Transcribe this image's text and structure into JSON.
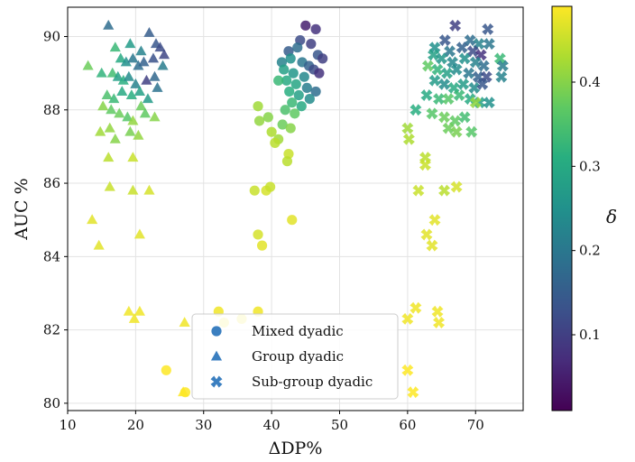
{
  "chart_data": {
    "type": "scatter",
    "xlabel": "ΔDP%",
    "ylabel": "AUC %",
    "xlim": [
      10,
      77
    ],
    "ylim": [
      79.8,
      90.8
    ],
    "x_ticks": [
      10,
      20,
      30,
      40,
      50,
      60,
      70
    ],
    "y_ticks": [
      80,
      82,
      84,
      86,
      88,
      90
    ],
    "grid": true,
    "legend_placement": "lower center",
    "colormap": "viridis",
    "colorbar": {
      "label": "δ",
      "range": [
        0.01,
        0.49
      ],
      "ticks": [
        0.1,
        0.2,
        0.3,
        0.4
      ]
    },
    "series": [
      {
        "name": "Mixed dyadic",
        "marker": "circle",
        "legend_color": "#3b7fc0",
        "points": [
          [
            45.0,
            90.3,
            0.05
          ],
          [
            46.5,
            90.2,
            0.08
          ],
          [
            44.2,
            89.9,
            0.12
          ],
          [
            45.8,
            89.8,
            0.1
          ],
          [
            42.5,
            89.6,
            0.15
          ],
          [
            43.8,
            89.7,
            0.18
          ],
          [
            46.8,
            89.5,
            0.14
          ],
          [
            47.5,
            89.4,
            0.1
          ],
          [
            41.5,
            89.3,
            0.22
          ],
          [
            42.8,
            89.4,
            0.25
          ],
          [
            44.5,
            89.3,
            0.2
          ],
          [
            45.5,
            89.2,
            0.16
          ],
          [
            46.2,
            89.1,
            0.12
          ],
          [
            47.0,
            89.0,
            0.08
          ],
          [
            41.8,
            89.1,
            0.28
          ],
          [
            43.2,
            89.0,
            0.26
          ],
          [
            44.8,
            88.9,
            0.23
          ],
          [
            42.2,
            88.8,
            0.3
          ],
          [
            43.6,
            88.7,
            0.29
          ],
          [
            45.2,
            88.6,
            0.21
          ],
          [
            46.5,
            88.5,
            0.18
          ],
          [
            41.0,
            88.8,
            0.33
          ],
          [
            42.6,
            88.5,
            0.31
          ],
          [
            44.0,
            88.4,
            0.28
          ],
          [
            45.6,
            88.3,
            0.24
          ],
          [
            43.0,
            88.2,
            0.33
          ],
          [
            44.4,
            88.1,
            0.3
          ],
          [
            42.0,
            88.0,
            0.35
          ],
          [
            43.4,
            87.9,
            0.37
          ],
          [
            41.6,
            87.6,
            0.38
          ],
          [
            42.8,
            87.5,
            0.4
          ],
          [
            38.0,
            88.1,
            0.42
          ],
          [
            38.2,
            87.7,
            0.41
          ],
          [
            39.5,
            87.8,
            0.4
          ],
          [
            40.0,
            87.4,
            0.43
          ],
          [
            41.0,
            87.2,
            0.42
          ],
          [
            40.5,
            87.1,
            0.44
          ],
          [
            42.5,
            86.8,
            0.45
          ],
          [
            42.3,
            86.6,
            0.44
          ],
          [
            37.5,
            85.8,
            0.45
          ],
          [
            39.2,
            85.8,
            0.46
          ],
          [
            39.8,
            85.9,
            0.45
          ],
          [
            43.0,
            85.0,
            0.47
          ],
          [
            38.0,
            84.6,
            0.46
          ],
          [
            38.6,
            84.3,
            0.47
          ],
          [
            32.2,
            82.5,
            0.48
          ],
          [
            38.0,
            82.5,
            0.48
          ],
          [
            33.0,
            82.2,
            0.48
          ],
          [
            35.6,
            82.3,
            0.48
          ],
          [
            24.5,
            80.9,
            0.49
          ],
          [
            27.3,
            80.3,
            0.49
          ]
        ]
      },
      {
        "name": "Group dyadic",
        "marker": "triangle",
        "legend_color": "#3b7fc0",
        "points": [
          [
            16.0,
            90.3,
            0.18
          ],
          [
            22.0,
            90.1,
            0.15
          ],
          [
            17.0,
            89.7,
            0.33
          ],
          [
            19.2,
            89.8,
            0.27
          ],
          [
            20.8,
            89.6,
            0.22
          ],
          [
            23.0,
            89.8,
            0.14
          ],
          [
            23.6,
            89.7,
            0.12
          ],
          [
            17.8,
            89.4,
            0.3
          ],
          [
            18.6,
            89.3,
            0.25
          ],
          [
            19.6,
            89.4,
            0.2
          ],
          [
            20.4,
            89.2,
            0.18
          ],
          [
            21.2,
            89.3,
            0.16
          ],
          [
            22.6,
            89.4,
            0.13
          ],
          [
            24.2,
            89.5,
            0.11
          ],
          [
            15.0,
            89.0,
            0.32
          ],
          [
            16.6,
            89.0,
            0.34
          ],
          [
            17.4,
            88.9,
            0.28
          ],
          [
            18.2,
            88.8,
            0.31
          ],
          [
            19.0,
            88.9,
            0.24
          ],
          [
            20.0,
            88.7,
            0.22
          ],
          [
            21.6,
            88.8,
            0.1
          ],
          [
            22.8,
            88.9,
            0.17
          ],
          [
            24.0,
            89.2,
            0.21
          ],
          [
            15.8,
            88.4,
            0.35
          ],
          [
            16.8,
            88.3,
            0.33
          ],
          [
            18.0,
            88.5,
            0.3
          ],
          [
            19.4,
            88.4,
            0.31
          ],
          [
            20.6,
            88.5,
            0.28
          ],
          [
            21.8,
            88.3,
            0.27
          ],
          [
            23.2,
            88.6,
            0.19
          ],
          [
            13.0,
            89.2,
            0.38
          ],
          [
            15.2,
            88.1,
            0.4
          ],
          [
            16.4,
            88.0,
            0.37
          ],
          [
            17.6,
            87.9,
            0.38
          ],
          [
            18.8,
            87.8,
            0.36
          ],
          [
            19.6,
            87.7,
            0.41
          ],
          [
            20.8,
            88.1,
            0.38
          ],
          [
            21.4,
            87.9,
            0.37
          ],
          [
            22.8,
            87.8,
            0.4
          ],
          [
            14.8,
            87.4,
            0.42
          ],
          [
            16.2,
            87.5,
            0.41
          ],
          [
            17.0,
            87.2,
            0.4
          ],
          [
            19.2,
            87.4,
            0.39
          ],
          [
            20.4,
            87.3,
            0.41
          ],
          [
            16.0,
            86.7,
            0.44
          ],
          [
            19.6,
            86.7,
            0.45
          ],
          [
            16.2,
            85.9,
            0.45
          ],
          [
            19.6,
            85.8,
            0.45
          ],
          [
            22.0,
            85.8,
            0.46
          ],
          [
            13.6,
            85.0,
            0.47
          ],
          [
            14.6,
            84.3,
            0.47
          ],
          [
            20.6,
            84.6,
            0.47
          ],
          [
            19.0,
            82.5,
            0.48
          ],
          [
            20.6,
            82.5,
            0.48
          ],
          [
            19.8,
            82.3,
            0.48
          ],
          [
            27.2,
            82.2,
            0.48
          ],
          [
            27.0,
            80.3,
            0.49
          ]
        ]
      },
      {
        "name": "Sub-group dyadic",
        "marker": "x",
        "legend_color": "#3b7fc0",
        "points": [
          [
            67.0,
            90.3,
            0.1
          ],
          [
            71.8,
            90.2,
            0.14
          ],
          [
            65.5,
            89.9,
            0.14
          ],
          [
            69.2,
            89.9,
            0.18
          ],
          [
            70.5,
            89.8,
            0.22
          ],
          [
            72.0,
            89.8,
            0.2
          ],
          [
            64.0,
            89.7,
            0.25
          ],
          [
            66.2,
            89.6,
            0.2
          ],
          [
            68.0,
            89.7,
            0.16
          ],
          [
            69.6,
            89.6,
            0.12
          ],
          [
            70.8,
            89.5,
            0.08
          ],
          [
            73.6,
            89.4,
            0.33
          ],
          [
            63.8,
            89.5,
            0.28
          ],
          [
            65.0,
            89.4,
            0.26
          ],
          [
            66.6,
            89.3,
            0.23
          ],
          [
            68.4,
            89.4,
            0.25
          ],
          [
            70.0,
            89.3,
            0.22
          ],
          [
            71.2,
            89.2,
            0.18
          ],
          [
            74.0,
            89.2,
            0.21
          ],
          [
            63.0,
            89.2,
            0.37
          ],
          [
            64.4,
            89.1,
            0.32
          ],
          [
            65.8,
            89.0,
            0.28
          ],
          [
            67.2,
            89.1,
            0.24
          ],
          [
            69.0,
            89.0,
            0.2
          ],
          [
            70.4,
            88.9,
            0.16
          ],
          [
            71.6,
            88.9,
            0.12
          ],
          [
            73.8,
            88.9,
            0.22
          ],
          [
            64.0,
            88.8,
            0.27
          ],
          [
            65.4,
            88.7,
            0.24
          ],
          [
            66.8,
            88.6,
            0.3
          ],
          [
            68.2,
            88.7,
            0.27
          ],
          [
            69.8,
            88.6,
            0.24
          ],
          [
            71.0,
            88.7,
            0.14
          ],
          [
            62.8,
            88.4,
            0.3
          ],
          [
            64.6,
            88.3,
            0.33
          ],
          [
            66.0,
            88.3,
            0.36
          ],
          [
            67.6,
            88.4,
            0.33
          ],
          [
            69.2,
            88.3,
            0.3
          ],
          [
            70.6,
            88.2,
            0.28
          ],
          [
            72.0,
            88.2,
            0.25
          ],
          [
            61.2,
            88.0,
            0.31
          ],
          [
            63.6,
            87.9,
            0.36
          ],
          [
            65.4,
            87.8,
            0.38
          ],
          [
            67.0,
            87.7,
            0.37
          ],
          [
            68.4,
            87.8,
            0.34
          ],
          [
            70.0,
            88.2,
            0.41
          ],
          [
            66.0,
            87.5,
            0.38
          ],
          [
            67.2,
            87.4,
            0.39
          ],
          [
            69.4,
            87.4,
            0.36
          ],
          [
            60.0,
            87.5,
            0.42
          ],
          [
            60.2,
            87.2,
            0.43
          ],
          [
            62.6,
            86.7,
            0.44
          ],
          [
            62.6,
            86.5,
            0.45
          ],
          [
            61.6,
            85.8,
            0.45
          ],
          [
            65.4,
            85.8,
            0.44
          ],
          [
            67.2,
            85.9,
            0.46
          ],
          [
            64.0,
            85.0,
            0.47
          ],
          [
            62.8,
            84.6,
            0.47
          ],
          [
            63.6,
            84.3,
            0.47
          ],
          [
            61.2,
            82.6,
            0.48
          ],
          [
            64.4,
            82.5,
            0.48
          ],
          [
            60.0,
            82.3,
            0.48
          ],
          [
            64.6,
            82.2,
            0.48
          ],
          [
            60.0,
            80.9,
            0.49
          ],
          [
            60.8,
            80.3,
            0.49
          ]
        ]
      }
    ]
  }
}
